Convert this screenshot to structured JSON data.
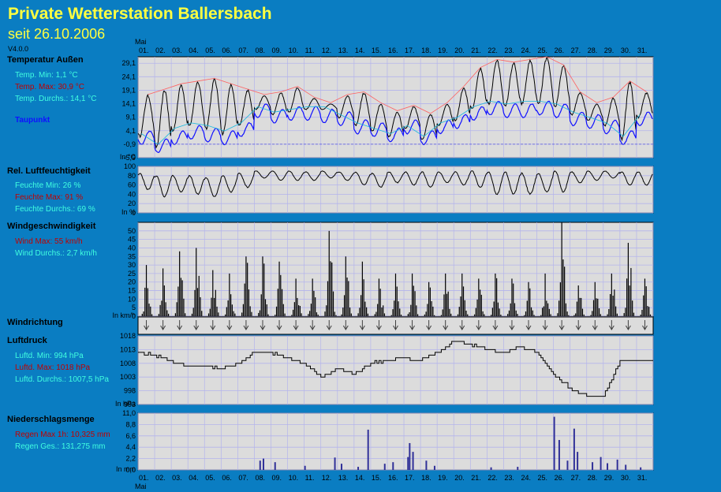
{
  "header": {
    "title": "Private Wetterstation Ballersbach",
    "subtitle": "seit 26.10.2006",
    "version": "V4.0.0"
  },
  "month_label": "Mai",
  "days": [
    "01.",
    "02.",
    "03.",
    "04.",
    "05.",
    "06.",
    "07.",
    "08.",
    "09.",
    "10.",
    "11.",
    "12.",
    "13.",
    "14.",
    "15.",
    "16.",
    "17.",
    "18.",
    "19.",
    "20.",
    "21.",
    "22.",
    "23.",
    "24.",
    "25.",
    "26.",
    "27.",
    "28.",
    "29.",
    "30.",
    "31."
  ],
  "sections": {
    "temp": {
      "title": "Temperatur Außen",
      "min": "Temp. Min: 1,1 °C",
      "max": "Temp. Max: 30,9 °C",
      "avg": "Temp. Durchs.: 14,1 °C",
      "dew": "Taupunkt",
      "unit": "In °C"
    },
    "hum": {
      "title": "Rel. Luftfeuchtigkeit",
      "min": "Feuchte Min: 26 %",
      "max": "Feuchte Max: 91 %",
      "avg": "Feuchte Durchs.: 69 %",
      "unit": "In %"
    },
    "wind": {
      "title": "Windgeschwindigkeit",
      "max": "Wind Max: 55 km/h",
      "avg": "Wind Durchs.: 2,7 km/h",
      "unit": "In km/h"
    },
    "dir": {
      "title": "Windrichtung"
    },
    "press": {
      "title": "Luftdruck",
      "min": "Luftd. Min: 994 hPa",
      "max": "Luftd. Max: 1018 hPa",
      "avg": "Luftd. Durchs.: 1007,5 hPa",
      "unit": "In hPa"
    },
    "rain": {
      "title": "Niederschlagsmenge",
      "max": "Regen Max 1h: 10,325 mm",
      "total": "Regen Ges.: 131,275 mm",
      "unit": "In mm"
    }
  },
  "colors": {
    "background": "#0a7dc2",
    "plot": "#dcdcdc",
    "grid": "#b4b4ec",
    "title": "#ffff40",
    "max": "#c00000",
    "avg": "#40ffe0",
    "dew": "#1010ff",
    "rain": "#303098"
  },
  "chart_data": [
    {
      "type": "line",
      "id": "temperature",
      "yticks": [
        "29,1",
        "24,1",
        "19,1",
        "14,1",
        "9,1",
        "4,1",
        "-0,9",
        "-5,9"
      ],
      "ylim": [
        -5.9,
        31.5
      ],
      "daily_max": [
        17,
        19,
        21,
        22,
        23,
        21,
        19,
        17,
        18,
        20,
        16,
        14,
        17,
        18,
        14,
        11,
        13,
        10,
        14,
        20,
        27,
        30,
        29,
        30,
        31,
        28,
        18,
        14,
        16,
        22,
        18
      ],
      "daily_min": [
        2,
        -2,
        4,
        6,
        5,
        3,
        6,
        12,
        10,
        11,
        12,
        12,
        9,
        6,
        4,
        2,
        5,
        1,
        6,
        8,
        12,
        14,
        13,
        14,
        14,
        13,
        10,
        8,
        6,
        1,
        9
      ],
      "dewpoint_daily": [
        2,
        -1,
        2,
        4,
        3,
        2,
        5,
        12,
        10,
        11,
        11,
        10,
        9,
        6,
        5,
        3,
        6,
        2,
        6,
        8,
        11,
        13,
        12,
        12,
        13,
        12,
        9,
        8,
        6,
        2,
        9
      ],
      "series": [
        {
          "name": "Taupunkt"
        }
      ]
    },
    {
      "type": "line",
      "id": "humidity",
      "yticks": [
        "100",
        "80",
        "60",
        "40",
        "20",
        "0"
      ],
      "ylim": [
        0,
        100
      ],
      "daily_min": [
        50,
        35,
        45,
        40,
        35,
        45,
        55,
        75,
        70,
        70,
        70,
        75,
        70,
        60,
        55,
        65,
        60,
        55,
        65,
        60,
        55,
        40,
        40,
        40,
        45,
        45,
        65,
        70,
        75,
        60,
        60
      ],
      "daily_max": [
        85,
        80,
        80,
        80,
        75,
        80,
        85,
        90,
        90,
        90,
        88,
        90,
        88,
        88,
        85,
        88,
        88,
        88,
        88,
        88,
        90,
        88,
        88,
        85,
        85,
        90,
        88,
        90,
        90,
        88,
        88
      ]
    },
    {
      "type": "bar",
      "id": "wind",
      "yticks": [
        "50",
        "45",
        "40",
        "35",
        "30",
        "25",
        "20",
        "15",
        "10",
        "5",
        "0"
      ],
      "ylim": [
        0,
        55
      ],
      "daily_peak": [
        30,
        28,
        38,
        40,
        27,
        25,
        35,
        35,
        32,
        22,
        22,
        50,
        35,
        32,
        22,
        25,
        25,
        20,
        25,
        25,
        22,
        25,
        22,
        20,
        25,
        55,
        18,
        20,
        25,
        43,
        22
      ]
    },
    {
      "type": "line",
      "id": "pressure",
      "yticks": [
        "1018",
        "1013",
        "1008",
        "1003",
        "998",
        "993"
      ],
      "ylim": [
        993,
        1018
      ],
      "daily": [
        1012,
        1011,
        1009,
        1007,
        1007,
        1006,
        1008,
        1012,
        1012,
        1010,
        1008,
        1003,
        1006,
        1004,
        1008,
        1009,
        1010,
        1009,
        1012,
        1016,
        1015,
        1013,
        1012,
        1014,
        1012,
        1004,
        999,
        996,
        996,
        1009,
        1009
      ]
    },
    {
      "type": "bar",
      "id": "rain",
      "yticks": [
        "11,0",
        "8,8",
        "6,6",
        "4,4",
        "2,2",
        "0,0"
      ],
      "ylim": [
        0,
        11
      ],
      "bars": [
        [
          7.3,
          1.8
        ],
        [
          7.5,
          2.2
        ],
        [
          8.2,
          1.5
        ],
        [
          10.0,
          0.8
        ],
        [
          11.8,
          2.4
        ],
        [
          12.2,
          1.2
        ],
        [
          13.2,
          0.6
        ],
        [
          13.8,
          7.8
        ],
        [
          14.8,
          1.2
        ],
        [
          15.3,
          1.5
        ],
        [
          16.2,
          2.5
        ],
        [
          16.3,
          5.2
        ],
        [
          16.5,
          3.5
        ],
        [
          17.3,
          1.8
        ],
        [
          17.8,
          0.8
        ],
        [
          21.2,
          0.5
        ],
        [
          22.8,
          0.6
        ],
        [
          25.0,
          10.3
        ],
        [
          25.3,
          5.8
        ],
        [
          25.8,
          1.8
        ],
        [
          26.2,
          8.0
        ],
        [
          26.4,
          3.5
        ],
        [
          27.3,
          1.5
        ],
        [
          27.8,
          2.5
        ],
        [
          28.2,
          1.3
        ],
        [
          28.8,
          2.0
        ],
        [
          29.3,
          1.0
        ],
        [
          30.2,
          0.5
        ]
      ]
    }
  ]
}
